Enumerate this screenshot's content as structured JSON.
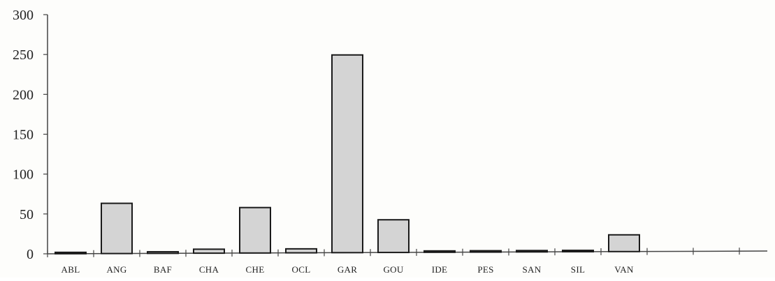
{
  "chart_data": {
    "type": "bar",
    "title": "",
    "xlabel": "",
    "ylabel": "",
    "categories": [
      "ABL",
      "ANG",
      "BAF",
      "CHA",
      "CHE",
      "OCL",
      "GAR",
      "GOU",
      "IDE",
      "PES",
      "SAN",
      "SIL",
      "VAN",
      "",
      "",
      ""
    ],
    "values": [
      1,
      63,
      2,
      5,
      57,
      5,
      248,
      41,
      1,
      1,
      1,
      1,
      21,
      0,
      0,
      0
    ],
    "ylim": [
      0,
      300
    ],
    "yticks": [
      "0",
      "50",
      "100",
      "150",
      "200",
      "250",
      "300"
    ],
    "grid": false,
    "legend": "none",
    "colors": {
      "bar_fill": "#d4d4d4",
      "bar_stroke": "#1a1a1a",
      "axis": "#444444"
    }
  }
}
